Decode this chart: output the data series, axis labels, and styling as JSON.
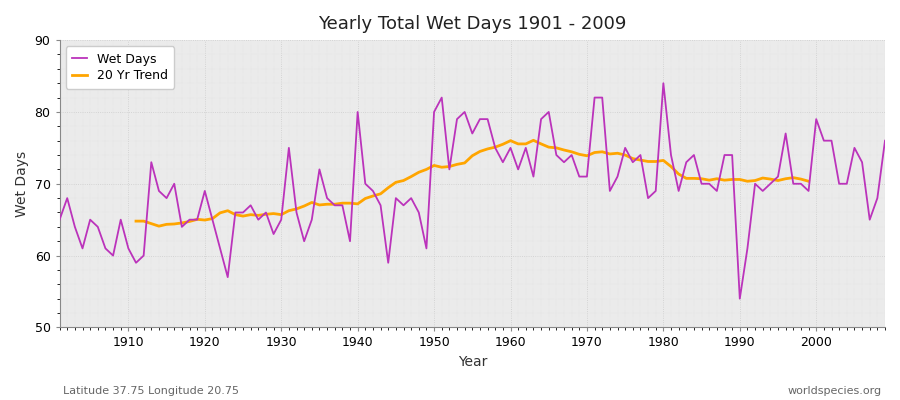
{
  "title": "Yearly Total Wet Days 1901 - 2009",
  "xlabel": "Year",
  "ylabel": "Wet Days",
  "footnote_left": "Latitude 37.75 Longitude 20.75",
  "footnote_right": "worldspecies.org",
  "line_color": "#bb33bb",
  "trend_color": "#ffa500",
  "fig_bg_color": "#ffffff",
  "plot_bg_color": "#ebebeb",
  "ylim": [
    50,
    90
  ],
  "xlim": [
    1901,
    2009
  ],
  "yticks": [
    50,
    60,
    70,
    80,
    90
  ],
  "xticks": [
    1910,
    1920,
    1930,
    1940,
    1950,
    1960,
    1970,
    1980,
    1990,
    2000
  ],
  "years": [
    1901,
    1902,
    1903,
    1904,
    1905,
    1906,
    1907,
    1908,
    1909,
    1910,
    1911,
    1912,
    1913,
    1914,
    1915,
    1916,
    1917,
    1918,
    1919,
    1920,
    1921,
    1922,
    1923,
    1924,
    1925,
    1926,
    1927,
    1928,
    1929,
    1930,
    1931,
    1932,
    1933,
    1934,
    1935,
    1936,
    1937,
    1938,
    1939,
    1940,
    1941,
    1942,
    1943,
    1944,
    1945,
    1946,
    1947,
    1948,
    1949,
    1950,
    1951,
    1952,
    1953,
    1954,
    1955,
    1956,
    1957,
    1958,
    1959,
    1960,
    1961,
    1962,
    1963,
    1964,
    1965,
    1966,
    1967,
    1968,
    1969,
    1970,
    1971,
    1972,
    1973,
    1974,
    1975,
    1976,
    1977,
    1978,
    1979,
    1980,
    1981,
    1982,
    1983,
    1984,
    1985,
    1986,
    1987,
    1988,
    1989,
    1990,
    1991,
    1992,
    1993,
    1994,
    1995,
    1996,
    1997,
    1998,
    1999,
    2000,
    2001,
    2002,
    2003,
    2004,
    2005,
    2006,
    2007,
    2008,
    2009
  ],
  "wet_days": [
    65,
    68,
    64,
    61,
    65,
    64,
    61,
    60,
    65,
    61,
    59,
    60,
    73,
    69,
    68,
    70,
    64,
    65,
    65,
    69,
    65,
    61,
    57,
    66,
    66,
    67,
    65,
    66,
    63,
    65,
    75,
    66,
    62,
    65,
    72,
    68,
    67,
    67,
    62,
    80,
    70,
    69,
    67,
    59,
    68,
    67,
    68,
    66,
    61,
    80,
    82,
    72,
    79,
    80,
    77,
    79,
    79,
    75,
    73,
    75,
    72,
    75,
    71,
    79,
    80,
    74,
    73,
    74,
    71,
    71,
    82,
    82,
    69,
    71,
    75,
    73,
    74,
    68,
    69,
    84,
    74,
    69,
    73,
    74,
    70,
    70,
    69,
    74,
    74,
    54,
    61,
    70,
    69,
    70,
    71,
    77,
    70,
    70,
    69,
    79,
    76,
    76,
    70,
    70,
    75,
    73,
    65,
    68,
    76
  ]
}
